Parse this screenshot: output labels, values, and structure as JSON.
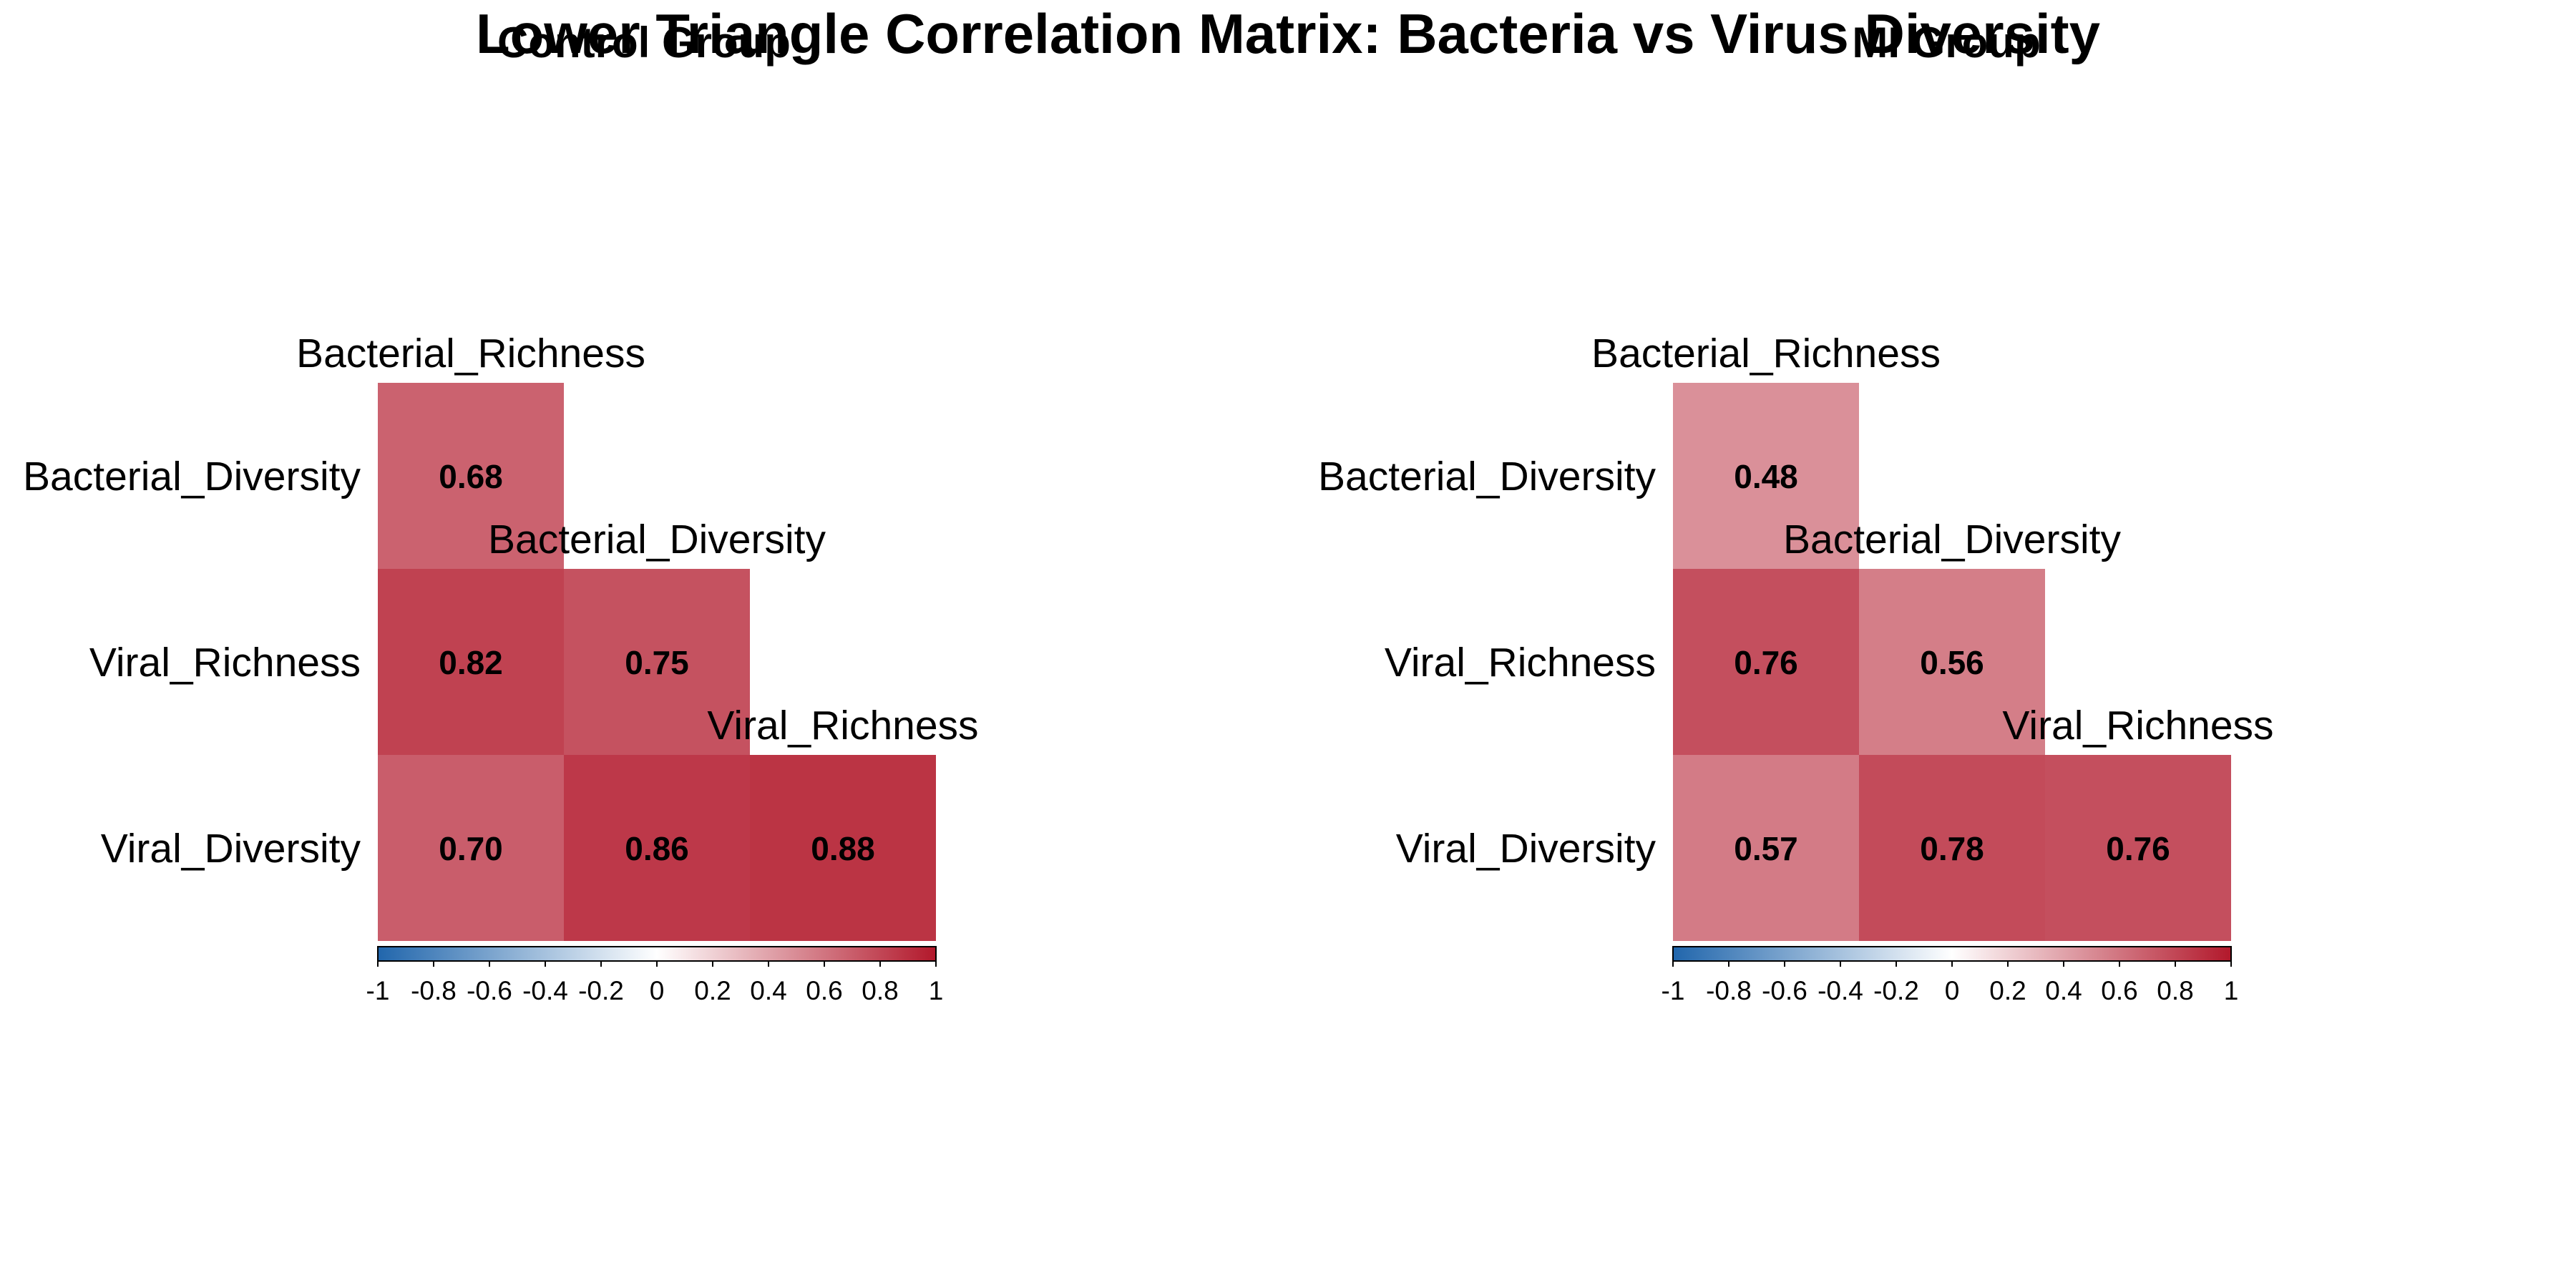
{
  "title": "Lower Triangle Correlation Matrix: Bacteria vs Virus Diversity",
  "colors": {
    "negative": "#2166AC",
    "neutral": "#FFFFFF",
    "positive": "#B2182B",
    "text": "#000000"
  },
  "chart_data": [
    {
      "type": "heatmap",
      "title": "Control Group",
      "row_labels": [
        "Bacterial_Diversity",
        "Viral_Richness",
        "Viral_Diversity"
      ],
      "col_labels": [
        "Bacterial_Richness",
        "Bacterial_Diversity",
        "Viral_Richness"
      ],
      "values": [
        [
          0.68,
          null,
          null
        ],
        [
          0.82,
          0.75,
          null
        ],
        [
          0.7,
          0.86,
          0.88
        ]
      ],
      "value_labels": [
        [
          "0.68",
          "",
          ""
        ],
        [
          "0.82",
          "0.75",
          ""
        ],
        [
          "0.70",
          "0.86",
          "0.88"
        ]
      ],
      "colorbar": {
        "range": [
          -1,
          1
        ],
        "ticks": [
          "-1",
          "-0.8",
          "-0.6",
          "-0.4",
          "-0.2",
          "0",
          "0.2",
          "0.4",
          "0.6",
          "0.8",
          "1"
        ]
      }
    },
    {
      "type": "heatmap",
      "title": "MI Group",
      "row_labels": [
        "Bacterial_Diversity",
        "Viral_Richness",
        "Viral_Diversity"
      ],
      "col_labels": [
        "Bacterial_Richness",
        "Bacterial_Diversity",
        "Viral_Richness"
      ],
      "values": [
        [
          0.48,
          null,
          null
        ],
        [
          0.76,
          0.56,
          null
        ],
        [
          0.57,
          0.78,
          0.76
        ]
      ],
      "value_labels": [
        [
          "0.48",
          "",
          ""
        ],
        [
          "0.76",
          "0.56",
          ""
        ],
        [
          "0.57",
          "0.78",
          "0.76"
        ]
      ],
      "colorbar": {
        "range": [
          -1,
          1
        ],
        "ticks": [
          "-1",
          "-0.8",
          "-0.6",
          "-0.4",
          "-0.2",
          "0",
          "0.2",
          "0.4",
          "0.6",
          "0.8",
          "1"
        ]
      }
    }
  ]
}
